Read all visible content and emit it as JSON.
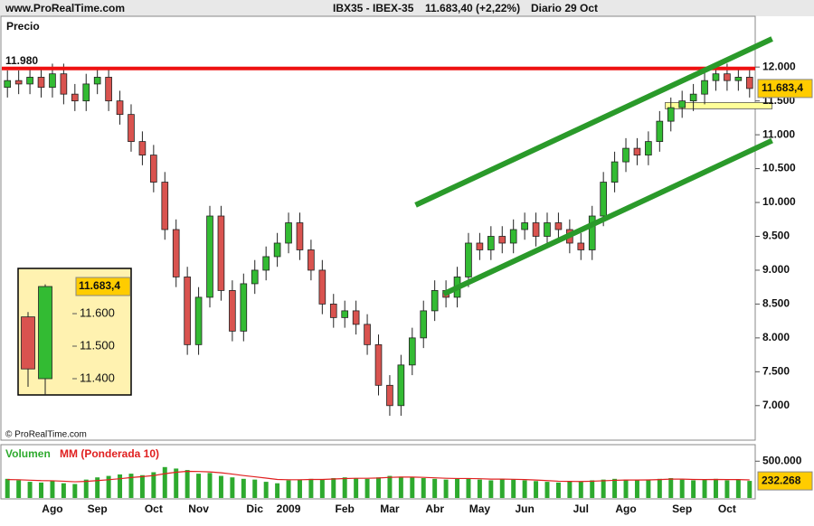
{
  "header": {
    "site": "www.ProRealTime.com",
    "symbol": "IBX35 - IBEX-35",
    "quote": "11.683,40 (+2,22%)",
    "period": "Diario  29 Oct"
  },
  "chart_data": [
    {
      "type": "candlestick",
      "axis_label": "Precio",
      "source": "© ProRealTime.com",
      "categories": [
        null,
        null,
        null,
        null,
        "Ago",
        null,
        null,
        null,
        "Sep",
        null,
        null,
        null,
        null,
        "Oct",
        null,
        null,
        null,
        "Nov",
        null,
        null,
        null,
        null,
        "Dic",
        null,
        null,
        "2009",
        null,
        null,
        null,
        null,
        "Feb",
        null,
        null,
        null,
        "Mar",
        null,
        null,
        null,
        "Abr",
        null,
        null,
        null,
        "May",
        null,
        null,
        null,
        "Jun",
        null,
        null,
        null,
        null,
        "Jul",
        null,
        null,
        null,
        "Ago",
        null,
        null,
        null,
        null,
        "Sep",
        null,
        null,
        null,
        "Oct",
        null,
        null
      ],
      "open": [
        11700,
        11800,
        11750,
        11850,
        11700,
        11900,
        11600,
        11500,
        11750,
        11850,
        11500,
        11300,
        10900,
        10700,
        10300,
        9600,
        8900,
        7900,
        8600,
        9800,
        8700,
        8100,
        8800,
        9000,
        9200,
        9400,
        9700,
        9300,
        9000,
        8500,
        8300,
        8400,
        8200,
        7900,
        7300,
        7000,
        7600,
        8000,
        8400,
        8700,
        8600,
        8900,
        9400,
        9300,
        9500,
        9400,
        9600,
        9700,
        9500,
        9700,
        9600,
        9400,
        9300,
        9800,
        10300,
        10600,
        10800,
        10700,
        10900,
        11200,
        11400,
        11500,
        11600,
        11800,
        11900,
        11800,
        11850
      ],
      "high": [
        11950,
        11950,
        12000,
        12000,
        12050,
        12050,
        11750,
        11900,
        12000,
        12000,
        11650,
        11450,
        11050,
        10850,
        10450,
        9750,
        9050,
        8750,
        9950,
        9950,
        8850,
        8950,
        9150,
        9350,
        9550,
        9850,
        9850,
        9450,
        9150,
        8650,
        8550,
        8550,
        8350,
        8050,
        7450,
        7750,
        8150,
        8550,
        8850,
        8850,
        9050,
        9550,
        9550,
        9650,
        9650,
        9750,
        9850,
        9850,
        9850,
        9850,
        9750,
        9550,
        9950,
        10450,
        10750,
        10950,
        10950,
        11050,
        11350,
        11550,
        11650,
        11750,
        11950,
        12050,
        12050,
        12000,
        12000
      ],
      "low": [
        11550,
        11600,
        11600,
        11550,
        11550,
        11450,
        11350,
        11350,
        11600,
        11350,
        11150,
        10750,
        10550,
        10150,
        9450,
        8750,
        7750,
        7750,
        8450,
        8550,
        7950,
        7950,
        8650,
        8850,
        9050,
        9250,
        9150,
        8850,
        8350,
        8150,
        8150,
        8050,
        7750,
        7150,
        6850,
        6850,
        7450,
        7850,
        8250,
        8450,
        8450,
        8750,
        9150,
        9150,
        9250,
        9250,
        9450,
        9350,
        9350,
        9450,
        9250,
        9150,
        9150,
        9650,
        10150,
        10450,
        10550,
        10550,
        10750,
        11050,
        11250,
        11350,
        11450,
        11650,
        11650,
        11650,
        11550
      ],
      "close": [
        11800,
        11750,
        11850,
        11700,
        11900,
        11600,
        11500,
        11750,
        11850,
        11500,
        11300,
        10900,
        10700,
        10300,
        9600,
        8900,
        7900,
        8600,
        9800,
        8700,
        8100,
        8800,
        9000,
        9200,
        9400,
        9700,
        9300,
        9000,
        8500,
        8300,
        8400,
        8200,
        7900,
        7300,
        7000,
        7600,
        8000,
        8400,
        8700,
        8600,
        8900,
        9400,
        9300,
        9500,
        9400,
        9600,
        9700,
        9500,
        9700,
        9600,
        9400,
        9300,
        9800,
        10300,
        10600,
        10800,
        10700,
        10900,
        11200,
        11400,
        11500,
        11600,
        11800,
        11900,
        11800,
        11850,
        11683.4
      ],
      "up_color": "#33bb33",
      "down_color": "#d9534f",
      "ylim": [
        6490,
        12750
      ],
      "yticks": [
        {
          "value": 7000,
          "label": "7.000"
        },
        {
          "value": 7500,
          "label": "7.500"
        },
        {
          "value": 8000,
          "label": "8.000"
        },
        {
          "value": 8500,
          "label": "8.500"
        },
        {
          "value": 9000,
          "label": "9.000"
        },
        {
          "value": 9500,
          "label": "9.500"
        },
        {
          "value": 10000,
          "label": "10.000"
        },
        {
          "value": 10500,
          "label": "10.500"
        },
        {
          "value": 11000,
          "label": "11.000"
        },
        {
          "value": 11500,
          "label": "11.500"
        },
        {
          "value": 12000,
          "label": "12.000"
        }
      ],
      "level": {
        "value": 11980,
        "label": "11.980",
        "color": "#ee1111"
      },
      "zone": {
        "x": [
          58.5,
          68
        ],
        "y": [
          11383,
          11477
        ],
        "color": "#ffff99"
      },
      "trendlines": [
        {
          "x": [
            36.3,
            68
          ],
          "y": [
            9962,
            12416
          ],
          "color": "#2a9a2a"
        },
        {
          "x": [
            38.8,
            68
          ],
          "y": [
            8649,
            10914
          ],
          "color": "#2a9a2a"
        }
      ],
      "last_price": {
        "value": 11683.4,
        "label": "11.683,4"
      }
    },
    {
      "type": "volume",
      "series": [
        {
          "name": "Volumen",
          "color": "#2eaa2e",
          "values": [
            260000,
            240000,
            220000,
            210000,
            230000,
            200000,
            190000,
            250000,
            280000,
            300000,
            320000,
            330000,
            310000,
            350000,
            420000,
            400000,
            380000,
            330000,
            340000,
            300000,
            280000,
            260000,
            250000,
            220000,
            200000,
            240000,
            250000,
            260000,
            250000,
            270000,
            280000,
            270000,
            260000,
            280000,
            300000,
            290000,
            280000,
            270000,
            260000,
            250000,
            260000,
            270000,
            250000,
            240000,
            260000,
            250000,
            240000,
            230000,
            220000,
            210000,
            230000,
            220000,
            240000,
            250000,
            260000,
            250000,
            240000,
            250000,
            260000,
            270000,
            250000,
            240000,
            250000,
            260000,
            240000,
            250000,
            232268
          ]
        },
        {
          "name": "MM (Ponderada 10)",
          "color": "#e02020",
          "values": [
            250000,
            248000,
            242000,
            236000,
            234000,
            228000,
            220000,
            226000,
            236000,
            248000,
            262000,
            278000,
            290000,
            305000,
            330000,
            350000,
            362000,
            360000,
            355000,
            342000,
            325000,
            305000,
            288000,
            270000,
            252000,
            248000,
            248000,
            252000,
            252000,
            258000,
            264000,
            268000,
            268000,
            272000,
            280000,
            284000,
            284000,
            280000,
            274000,
            268000,
            265000,
            265000,
            262000,
            256000,
            256000,
            254000,
            250000,
            244000,
            236000,
            228000,
            226000,
            224000,
            228000,
            234000,
            240000,
            244000,
            244000,
            246000,
            250000,
            256000,
            256000,
            252000,
            250000,
            252000,
            250000,
            250000,
            246000
          ]
        }
      ],
      "ylim": [
        0,
        700000
      ],
      "yticks": [
        {
          "value": 500000,
          "label": "500.000"
        }
      ],
      "last_value": {
        "value": 232268,
        "label": "232.268"
      }
    },
    {
      "type": "candlestick",
      "open": [
        11590,
        11400
      ],
      "high": [
        11605,
        11690
      ],
      "low": [
        11375,
        11350
      ],
      "close": [
        11430,
        11683.4
      ],
      "up_color": "#33bb33",
      "down_color": "#d9534f",
      "ylim": [
        11350,
        11739
      ],
      "yticks": [
        {
          "value": 11600,
          "label": "11.600"
        },
        {
          "value": 11500,
          "label": "11.500"
        },
        {
          "value": 11400,
          "label": "11.400"
        }
      ],
      "last_price": {
        "value": 11683.4,
        "label": "11.683,4"
      }
    }
  ]
}
